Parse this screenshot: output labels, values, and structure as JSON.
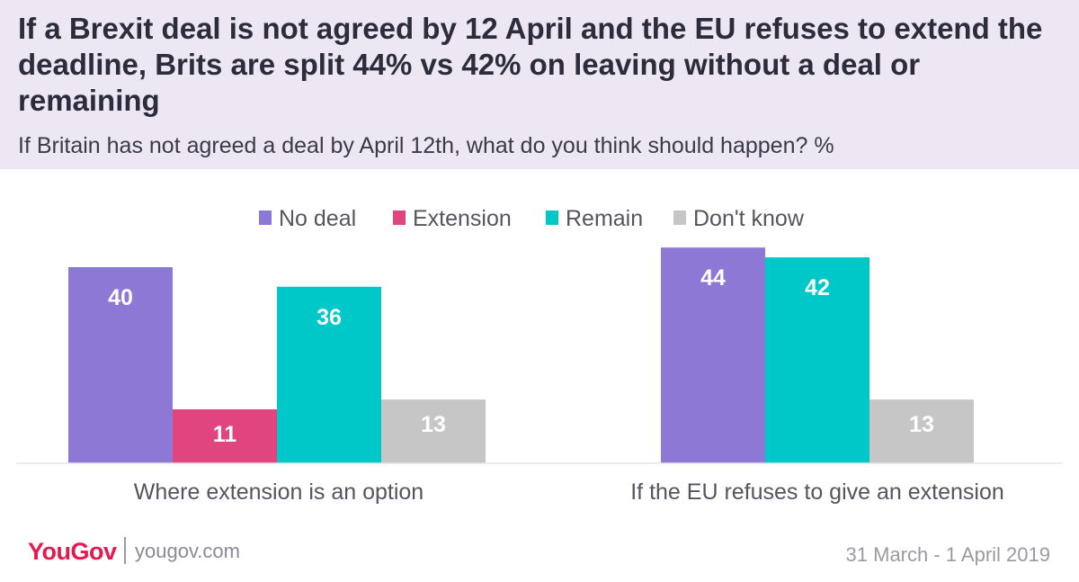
{
  "header": {
    "title": "If a Brexit deal is not agreed by 12 April and the EU refuses to extend the deadline, Brits are split 44% vs 42% on leaving without a deal or remaining",
    "subtitle": "If Britain has not agreed a deal by April 12th, what do you think should happen? %"
  },
  "chart_data": {
    "type": "bar",
    "title": "If a Brexit deal is not agreed by 12 April and the EU refuses to extend the deadline, Brits are split 44% vs 42% on leaving without a deal or remaining",
    "subtitle": "If Britain has not agreed a deal by April 12th, what do you think should happen? %",
    "categories": [
      "Where extension is an option",
      "If the EU refuses to give an extension"
    ],
    "series": [
      {
        "name": "No deal",
        "color": "#8e78d6",
        "values": [
          40,
          44
        ]
      },
      {
        "name": "Extension",
        "color": "#e0457f",
        "values": [
          11,
          null
        ]
      },
      {
        "name": "Remain",
        "color": "#00c8c8",
        "values": [
          36,
          42
        ]
      },
      {
        "name": "Don't know",
        "color": "#c6c6c6",
        "values": [
          13,
          13
        ]
      }
    ],
    "ylim": [
      0,
      50
    ],
    "legend_position": "top-center",
    "grid": false
  },
  "footer": {
    "brand": "YouGov",
    "site": "yougov.com",
    "date": "31 March - 1 April 2019"
  }
}
